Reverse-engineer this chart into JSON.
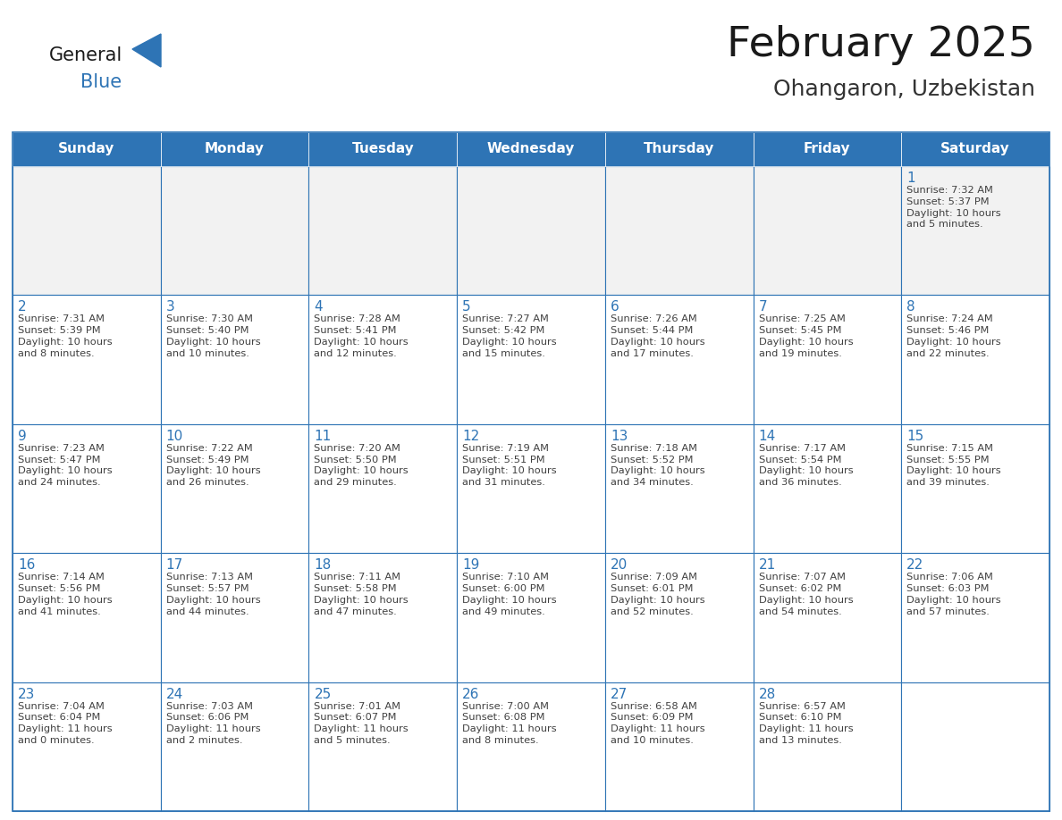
{
  "title": "February 2025",
  "subtitle": "Ohangaron, Uzbekistan",
  "days_of_week": [
    "Sunday",
    "Monday",
    "Tuesday",
    "Wednesday",
    "Thursday",
    "Friday",
    "Saturday"
  ],
  "header_bg_color": "#2E74B5",
  "header_text_color": "#FFFFFF",
  "cell_bg_color": "#FFFFFF",
  "cell_bg_alt": "#F2F2F2",
  "cell_border_color": "#2E74B5",
  "day_number_color": "#2E74B5",
  "info_text_color": "#404040",
  "title_color": "#1a1a1a",
  "subtitle_color": "#333333",
  "logo_general_color": "#1a1a1a",
  "logo_blue_color": "#2E74B5",
  "weeks": [
    [
      {
        "day": null,
        "info": ""
      },
      {
        "day": null,
        "info": ""
      },
      {
        "day": null,
        "info": ""
      },
      {
        "day": null,
        "info": ""
      },
      {
        "day": null,
        "info": ""
      },
      {
        "day": null,
        "info": ""
      },
      {
        "day": 1,
        "info": "Sunrise: 7:32 AM\nSunset: 5:37 PM\nDaylight: 10 hours\nand 5 minutes."
      }
    ],
    [
      {
        "day": 2,
        "info": "Sunrise: 7:31 AM\nSunset: 5:39 PM\nDaylight: 10 hours\nand 8 minutes."
      },
      {
        "day": 3,
        "info": "Sunrise: 7:30 AM\nSunset: 5:40 PM\nDaylight: 10 hours\nand 10 minutes."
      },
      {
        "day": 4,
        "info": "Sunrise: 7:28 AM\nSunset: 5:41 PM\nDaylight: 10 hours\nand 12 minutes."
      },
      {
        "day": 5,
        "info": "Sunrise: 7:27 AM\nSunset: 5:42 PM\nDaylight: 10 hours\nand 15 minutes."
      },
      {
        "day": 6,
        "info": "Sunrise: 7:26 AM\nSunset: 5:44 PM\nDaylight: 10 hours\nand 17 minutes."
      },
      {
        "day": 7,
        "info": "Sunrise: 7:25 AM\nSunset: 5:45 PM\nDaylight: 10 hours\nand 19 minutes."
      },
      {
        "day": 8,
        "info": "Sunrise: 7:24 AM\nSunset: 5:46 PM\nDaylight: 10 hours\nand 22 minutes."
      }
    ],
    [
      {
        "day": 9,
        "info": "Sunrise: 7:23 AM\nSunset: 5:47 PM\nDaylight: 10 hours\nand 24 minutes."
      },
      {
        "day": 10,
        "info": "Sunrise: 7:22 AM\nSunset: 5:49 PM\nDaylight: 10 hours\nand 26 minutes."
      },
      {
        "day": 11,
        "info": "Sunrise: 7:20 AM\nSunset: 5:50 PM\nDaylight: 10 hours\nand 29 minutes."
      },
      {
        "day": 12,
        "info": "Sunrise: 7:19 AM\nSunset: 5:51 PM\nDaylight: 10 hours\nand 31 minutes."
      },
      {
        "day": 13,
        "info": "Sunrise: 7:18 AM\nSunset: 5:52 PM\nDaylight: 10 hours\nand 34 minutes."
      },
      {
        "day": 14,
        "info": "Sunrise: 7:17 AM\nSunset: 5:54 PM\nDaylight: 10 hours\nand 36 minutes."
      },
      {
        "day": 15,
        "info": "Sunrise: 7:15 AM\nSunset: 5:55 PM\nDaylight: 10 hours\nand 39 minutes."
      }
    ],
    [
      {
        "day": 16,
        "info": "Sunrise: 7:14 AM\nSunset: 5:56 PM\nDaylight: 10 hours\nand 41 minutes."
      },
      {
        "day": 17,
        "info": "Sunrise: 7:13 AM\nSunset: 5:57 PM\nDaylight: 10 hours\nand 44 minutes."
      },
      {
        "day": 18,
        "info": "Sunrise: 7:11 AM\nSunset: 5:58 PM\nDaylight: 10 hours\nand 47 minutes."
      },
      {
        "day": 19,
        "info": "Sunrise: 7:10 AM\nSunset: 6:00 PM\nDaylight: 10 hours\nand 49 minutes."
      },
      {
        "day": 20,
        "info": "Sunrise: 7:09 AM\nSunset: 6:01 PM\nDaylight: 10 hours\nand 52 minutes."
      },
      {
        "day": 21,
        "info": "Sunrise: 7:07 AM\nSunset: 6:02 PM\nDaylight: 10 hours\nand 54 minutes."
      },
      {
        "day": 22,
        "info": "Sunrise: 7:06 AM\nSunset: 6:03 PM\nDaylight: 10 hours\nand 57 minutes."
      }
    ],
    [
      {
        "day": 23,
        "info": "Sunrise: 7:04 AM\nSunset: 6:04 PM\nDaylight: 11 hours\nand 0 minutes."
      },
      {
        "day": 24,
        "info": "Sunrise: 7:03 AM\nSunset: 6:06 PM\nDaylight: 11 hours\nand 2 minutes."
      },
      {
        "day": 25,
        "info": "Sunrise: 7:01 AM\nSunset: 6:07 PM\nDaylight: 11 hours\nand 5 minutes."
      },
      {
        "day": 26,
        "info": "Sunrise: 7:00 AM\nSunset: 6:08 PM\nDaylight: 11 hours\nand 8 minutes."
      },
      {
        "day": 27,
        "info": "Sunrise: 6:58 AM\nSunset: 6:09 PM\nDaylight: 11 hours\nand 10 minutes."
      },
      {
        "day": 28,
        "info": "Sunrise: 6:57 AM\nSunset: 6:10 PM\nDaylight: 11 hours\nand 13 minutes."
      },
      {
        "day": null,
        "info": ""
      }
    ]
  ]
}
